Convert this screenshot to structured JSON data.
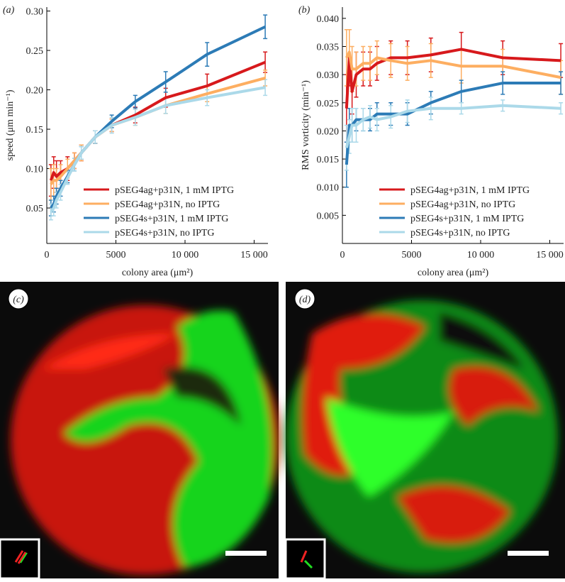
{
  "chart_data": [
    {
      "type": "line",
      "label": "(a)",
      "xlabel": "colony area (μm²)",
      "ylabel": "speed (μm min⁻¹)",
      "x": [
        300,
        500,
        700,
        1000,
        1500,
        2000,
        2500,
        3500,
        4700,
        6400,
        8600,
        11600,
        15800
      ],
      "xlim": [
        0,
        16000
      ],
      "ylim": [
        0.005,
        0.305
      ],
      "xticks": [
        0,
        5000,
        {
          "value": 10000,
          "label": "10 000"
        },
        {
          "value": 15000,
          "label": "15 000"
        }
      ],
      "yticks": [
        0.05,
        {
          "value": 0.1,
          "label": "0.10"
        },
        0.15,
        {
          "value": 0.2,
          "label": "0.20"
        },
        0.25,
        {
          "value": 0.3,
          "label": "0.30"
        }
      ],
      "legend": "lower right",
      "series": [
        {
          "name": "pSEG4ag+p31N, 1 mM IPTG",
          "color": "#d7191c",
          "values": [
            0.085,
            0.095,
            0.09,
            0.095,
            0.1,
            0.11,
            0.12,
            0.14,
            0.155,
            0.168,
            0.19,
            0.205,
            0.235
          ],
          "errors": [
            0.02,
            0.02,
            0.02,
            0.015,
            0.015,
            0.01,
            0.01,
            0.008,
            0.008,
            0.01,
            0.012,
            0.015,
            0.013
          ]
        },
        {
          "name": "pSEG4ag+p31N, no IPTG",
          "color": "#fdae61",
          "values": [
            0.08,
            0.085,
            0.085,
            0.09,
            0.1,
            0.11,
            0.12,
            0.14,
            0.155,
            0.165,
            0.18,
            0.195,
            0.215
          ],
          "errors": [
            0.02,
            0.02,
            0.015,
            0.015,
            0.012,
            0.01,
            0.01,
            0.008,
            0.008,
            0.01,
            0.01,
            0.01,
            0.01
          ]
        },
        {
          "name": "pSEG4s+p31N, 1 mM IPTG",
          "color": "#2c7bb6",
          "values": [
            0.05,
            0.055,
            0.065,
            0.075,
            0.09,
            0.105,
            0.12,
            0.14,
            0.16,
            0.185,
            0.21,
            0.245,
            0.28
          ],
          "errors": [
            0.01,
            0.01,
            0.01,
            0.01,
            0.008,
            0.008,
            0.008,
            0.008,
            0.008,
            0.008,
            0.013,
            0.015,
            0.015
          ]
        },
        {
          "name": "pSEG4s+p31N, no IPTG",
          "color": "#abd9e9",
          "values": [
            0.045,
            0.05,
            0.06,
            0.07,
            0.088,
            0.105,
            0.12,
            0.14,
            0.155,
            0.165,
            0.18,
            0.19,
            0.203
          ],
          "errors": [
            0.01,
            0.01,
            0.01,
            0.01,
            0.008,
            0.008,
            0.008,
            0.008,
            0.01,
            0.01,
            0.01,
            0.01,
            0.01
          ]
        }
      ]
    },
    {
      "type": "line",
      "label": "(b)",
      "xlabel": "colony area (μm²)",
      "ylabel": "RMS vorticity (min⁻¹)",
      "x": [
        300,
        500,
        700,
        1000,
        1500,
        2000,
        2500,
        3500,
        4700,
        6400,
        8600,
        11600,
        15800
      ],
      "xlim": [
        0,
        16000
      ],
      "ylim": [
        0,
        0.042
      ],
      "xticks": [
        0,
        5000,
        {
          "value": 10000,
          "label": "10 000"
        },
        {
          "value": 15000,
          "label": "15 000"
        }
      ],
      "yticks": [
        0.005,
        {
          "value": 0.01,
          "label": "0.010"
        },
        0.015,
        {
          "value": 0.02,
          "label": "0.020"
        },
        0.025,
        {
          "value": 0.03,
          "label": "0.030"
        },
        0.035,
        {
          "value": 0.04,
          "label": "0.040"
        }
      ],
      "legend": "lower right",
      "series": [
        {
          "name": "pSEG4ag+p31N, 1 mM IPTG",
          "color": "#d7191c",
          "values": [
            0.024,
            0.033,
            0.027,
            0.03,
            0.031,
            0.031,
            0.032,
            0.033,
            0.033,
            0.0335,
            0.0345,
            0.033,
            0.0325
          ],
          "errors": [
            0.006,
            0.005,
            0.004,
            0.004,
            0.003,
            0.003,
            0.003,
            0.003,
            0.003,
            0.003,
            0.003,
            0.003,
            0.003
          ]
        },
        {
          "name": "pSEG4ag+p31N, no IPTG",
          "color": "#fdae61",
          "values": [
            0.033,
            0.034,
            0.031,
            0.031,
            0.032,
            0.032,
            0.033,
            0.0325,
            0.032,
            0.0325,
            0.0315,
            0.0315,
            0.0295
          ],
          "errors": [
            0.005,
            0.004,
            0.004,
            0.003,
            0.003,
            0.003,
            0.003,
            0.003,
            0.003,
            0.003,
            0.003,
            0.003,
            0.003
          ]
        },
        {
          "name": "pSEG4s+p31N, 1 mM IPTG",
          "color": "#2c7bb6",
          "values": [
            0.014,
            0.021,
            0.021,
            0.022,
            0.022,
            0.022,
            0.023,
            0.023,
            0.023,
            0.025,
            0.027,
            0.0285,
            0.0285
          ],
          "errors": [
            0.004,
            0.003,
            0.003,
            0.002,
            0.002,
            0.002,
            0.002,
            0.002,
            0.002,
            0.002,
            0.002,
            0.002,
            0.002
          ]
        },
        {
          "name": "pSEG4s+p31N, no IPTG",
          "color": "#abd9e9",
          "values": [
            0.017,
            0.019,
            0.021,
            0.021,
            0.022,
            0.0225,
            0.022,
            0.0225,
            0.0235,
            0.024,
            0.024,
            0.0245,
            0.024
          ],
          "errors": [
            0.004,
            0.003,
            0.003,
            0.003,
            0.002,
            0.002,
            0.002,
            0.002,
            0.002,
            0.002,
            0.001,
            0.001,
            0.001
          ]
        }
      ]
    }
  ],
  "images": [
    {
      "label": "(c)"
    },
    {
      "label": "(d)"
    }
  ]
}
